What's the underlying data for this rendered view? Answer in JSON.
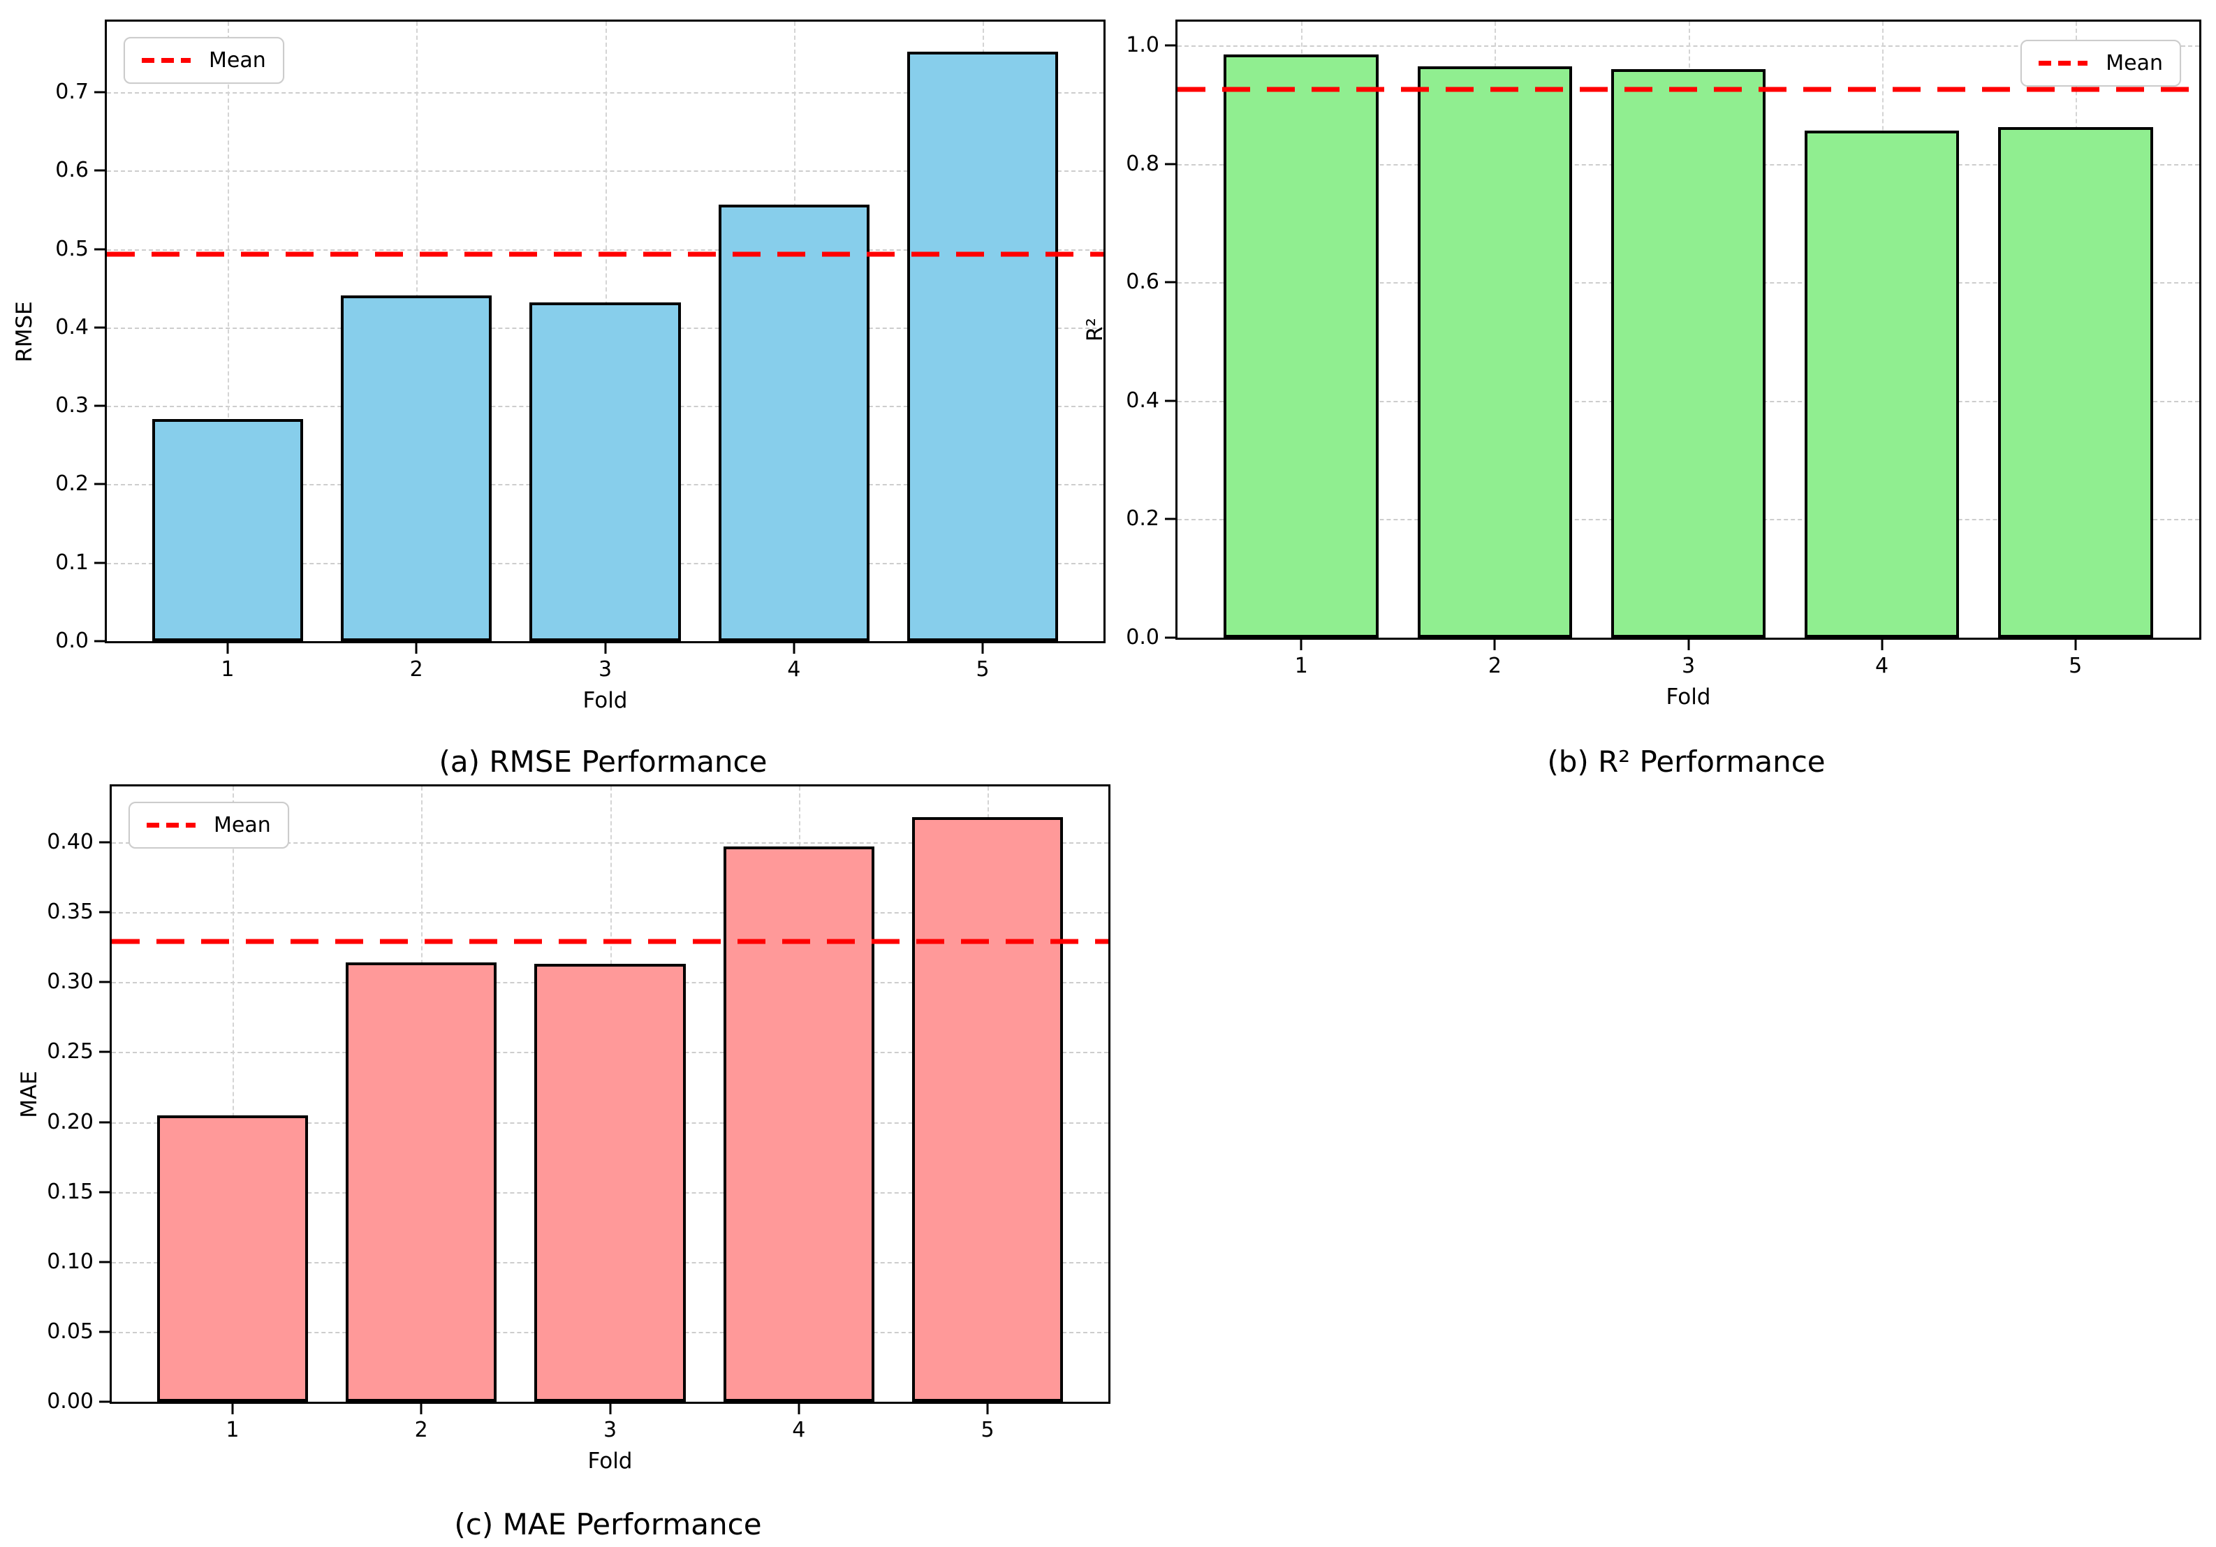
{
  "figure": {
    "background": "#ffffff",
    "grid_color": "#cdcdcd",
    "spine_color": "#000000",
    "text_color": "#000000",
    "mean_line_color": "#ff0000"
  },
  "chart_data": [
    {
      "type": "bar",
      "panel": "a",
      "caption": "(a) RMSE Performance",
      "xlabel": "Fold",
      "ylabel": "RMSE",
      "categories": [
        "1",
        "2",
        "3",
        "4",
        "5"
      ],
      "values": [
        0.283,
        0.441,
        0.432,
        0.557,
        0.752
      ],
      "mean_line": {
        "label": "Mean",
        "value": 0.493,
        "color": "#ff0000",
        "style": "dashed"
      },
      "legend_position": "top-left",
      "bar_color": "#87ceeb",
      "bar_edge_color": "#000000",
      "ylim": [
        0,
        0.79
      ],
      "ytick_values": [
        0.0,
        0.1,
        0.2,
        0.3,
        0.4,
        0.5,
        0.6,
        0.7
      ],
      "ytick_labels": [
        "0.0",
        "0.1",
        "0.2",
        "0.3",
        "0.4",
        "0.5",
        "0.6",
        "0.7"
      ],
      "grid": true
    },
    {
      "type": "bar",
      "panel": "b",
      "caption": "(b) R² Performance",
      "xlabel": "Fold",
      "ylabel": "R²",
      "categories": [
        "1",
        "2",
        "3",
        "4",
        "5"
      ],
      "values": [
        0.985,
        0.965,
        0.96,
        0.856,
        0.862
      ],
      "mean_line": {
        "label": "Mean",
        "value": 0.926,
        "color": "#ff0000",
        "style": "dashed"
      },
      "legend_position": "top-right",
      "bar_color": "#90ee90",
      "bar_edge_color": "#000000",
      "ylim": [
        0,
        1.04
      ],
      "ytick_values": [
        0.0,
        0.2,
        0.4,
        0.6,
        0.8,
        1.0
      ],
      "ytick_labels": [
        "0.0",
        "0.2",
        "0.4",
        "0.6",
        "0.8",
        "1.0"
      ],
      "grid": true
    },
    {
      "type": "bar",
      "panel": "c",
      "caption": "(c) MAE Performance",
      "xlabel": "Fold",
      "ylabel": "MAE",
      "categories": [
        "1",
        "2",
        "3",
        "4",
        "5"
      ],
      "values": [
        0.205,
        0.314,
        0.313,
        0.397,
        0.418
      ],
      "mean_line": {
        "label": "Mean",
        "value": 0.329,
        "color": "#ff0000",
        "style": "dashed"
      },
      "legend_position": "top-left",
      "bar_color": "#ff9999",
      "bar_edge_color": "#000000",
      "ylim": [
        0,
        0.44
      ],
      "ytick_values": [
        0.0,
        0.05,
        0.1,
        0.15,
        0.2,
        0.25,
        0.3,
        0.35,
        0.4
      ],
      "ytick_labels": [
        "0.00",
        "0.05",
        "0.10",
        "0.15",
        "0.20",
        "0.25",
        "0.30",
        "0.35",
        "0.40"
      ],
      "grid": true
    }
  ]
}
